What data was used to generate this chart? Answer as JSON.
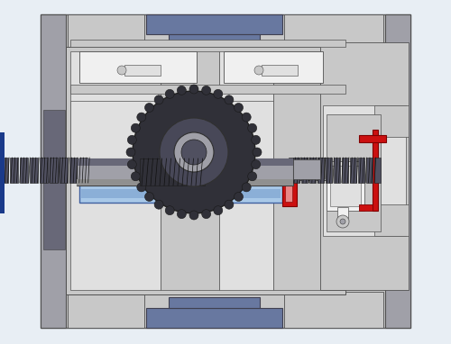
{
  "bg_color": "#e8eef4",
  "light_gray": "#c8c8c8",
  "mid_gray": "#a0a0a8",
  "dark_gray": "#686878",
  "darker_gray": "#505060",
  "blue_gray": "#6878a0",
  "light_blue": "#a8c8e8",
  "blue": "#7098c8",
  "red": "#cc1010",
  "light_red": "#e88888",
  "white": "#f0f0f0",
  "near_white": "#e0e0e0",
  "black": "#181818",
  "shaft_gray": "#909090",
  "gear_dark": "#303038"
}
